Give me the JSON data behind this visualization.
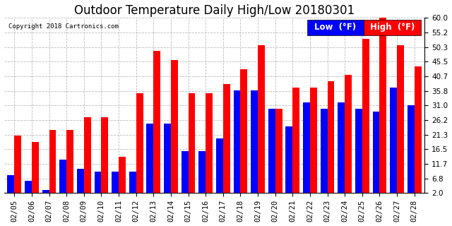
{
  "title": "Outdoor Temperature Daily High/Low 20180301",
  "copyright": "Copyright 2018 Cartronics.com",
  "legend_low": "Low  (°F)",
  "legend_high": "High  (°F)",
  "dates": [
    "02/05",
    "02/06",
    "02/07",
    "02/08",
    "02/09",
    "02/10",
    "02/11",
    "02/12",
    "02/13",
    "02/14",
    "02/15",
    "02/16",
    "02/17",
    "02/18",
    "02/19",
    "02/20",
    "02/21",
    "02/22",
    "02/23",
    "02/24",
    "02/25",
    "02/26",
    "02/27",
    "02/28"
  ],
  "lows": [
    8,
    6,
    3,
    13,
    10,
    9,
    9,
    9,
    25,
    25,
    16,
    16,
    20,
    36,
    36,
    30,
    24,
    32,
    30,
    32,
    30,
    29,
    37,
    31
  ],
  "highs": [
    21,
    19,
    23,
    23,
    27,
    27,
    14,
    35,
    49,
    46,
    35,
    35,
    38,
    43,
    51,
    30,
    37,
    37,
    39,
    41,
    53,
    60,
    51,
    44
  ],
  "low_color": "#0000ff",
  "high_color": "#ff0000",
  "bg_color": "#ffffff",
  "ymin": 2.0,
  "ymax": 60.0,
  "yticks": [
    2.0,
    6.8,
    11.7,
    16.5,
    21.3,
    26.2,
    31.0,
    35.8,
    40.7,
    45.5,
    50.3,
    55.2,
    60.0
  ],
  "grid_color": "#bbbbbb",
  "bar_width": 0.4,
  "title_fontsize": 12,
  "tick_fontsize": 7.5,
  "legend_fontsize": 8.5
}
